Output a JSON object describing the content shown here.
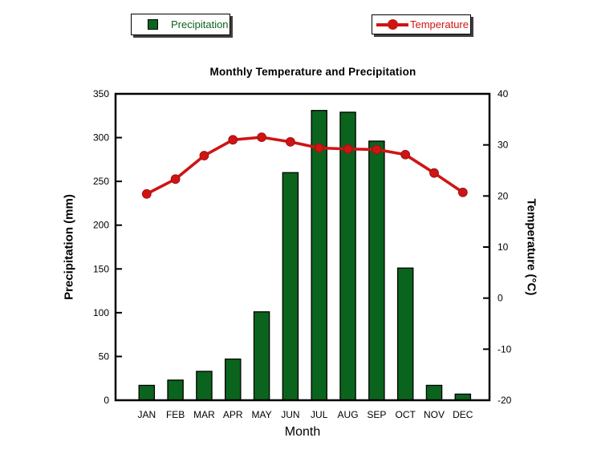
{
  "legend": {
    "precipitation": "Precipitation",
    "temperature": "Temperature"
  },
  "chart_data": {
    "type": "bar+line combo (climograph)",
    "title": "Monthly Temperature and Precipitation",
    "xlabel": "Month",
    "ylabel_left": "Precipitation (mm)",
    "ylabel_right": "Temperature (°C)",
    "categories": [
      "JAN",
      "FEB",
      "MAR",
      "APR",
      "MAY",
      "JUN",
      "JUL",
      "AUG",
      "SEP",
      "OCT",
      "NOV",
      "DEC"
    ],
    "series": [
      {
        "name": "Precipitation",
        "type": "bar",
        "axis": "left",
        "units": "mm",
        "values": [
          17,
          23,
          33,
          47,
          101,
          260,
          331,
          329,
          296,
          151,
          17,
          7
        ]
      },
      {
        "name": "Temperature",
        "type": "line",
        "axis": "right",
        "units": "°C",
        "values": [
          20.4,
          23.3,
          27.9,
          31.0,
          31.5,
          30.6,
          29.4,
          29.2,
          29.1,
          28.1,
          24.5,
          20.7
        ]
      }
    ],
    "ylim_left": [
      0,
      350
    ],
    "ylim_right": [
      -20,
      40
    ],
    "yticks_left": [
      0,
      50,
      100,
      150,
      200,
      250,
      300,
      350
    ],
    "yticks_right": [
      -20,
      -10,
      0,
      10,
      20,
      30,
      40
    ],
    "grid": false,
    "legend_position": "top",
    "tick_direction": "in"
  },
  "colors": {
    "bar_green": "#0b641d",
    "line_red": "#cf1414",
    "marker_edge_red": "#a30f0f",
    "axis_black": "#000000"
  }
}
